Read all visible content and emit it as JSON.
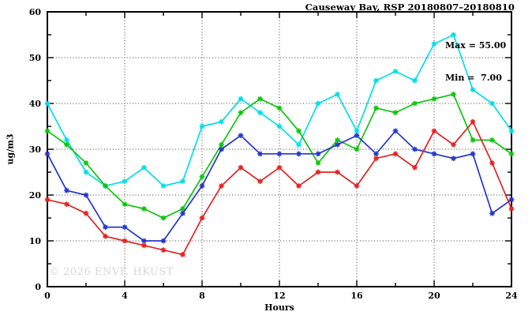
{
  "page": {
    "title": "Causeway Bay, RSP 20180807–20180810"
  },
  "annotations": {
    "max_label": "Max = 55.00",
    "min_label": "Min =  7.00"
  },
  "watermark": "© 2026 ENVF, HKUST",
  "chart_data": {
    "type": "line",
    "title": "Causeway Bay, RSP 20180807–20180810",
    "xlabel": "Hours",
    "ylabel": "ug/m3",
    "xlim": [
      0,
      24
    ],
    "ylim": [
      0,
      60
    ],
    "x_major_ticks": [
      0,
      4,
      8,
      12,
      16,
      20,
      24
    ],
    "x_minor_step": 2,
    "y_major_ticks": [
      0,
      10,
      20,
      30,
      40,
      50,
      60
    ],
    "y_minor_step": 5,
    "grid": "dotted lines at major ticks, mirrored inner ticks on all four sides",
    "legend_position": "none",
    "max": 55.0,
    "min": 7.0,
    "marker": "asterisk",
    "x": [
      0,
      1,
      2,
      3,
      4,
      5,
      6,
      7,
      8,
      9,
      10,
      11,
      12,
      13,
      14,
      15,
      16,
      17,
      18,
      19,
      20,
      21,
      22,
      23,
      24
    ],
    "series": [
      {
        "name": "cyan-line",
        "color": "#00DFE8",
        "values": [
          40,
          32,
          25,
          22,
          23,
          26,
          22,
          23,
          35,
          36,
          41,
          38,
          35,
          31,
          40,
          42,
          34,
          45,
          47,
          45,
          53,
          55,
          43,
          40,
          34
        ]
      },
      {
        "name": "green-line",
        "color": "#0DC60D",
        "values": [
          34,
          31,
          27,
          22,
          18,
          17,
          15,
          17,
          24,
          31,
          38,
          41,
          39,
          34,
          27,
          32,
          30,
          39,
          38,
          40,
          41,
          42,
          32,
          32,
          29
        ]
      },
      {
        "name": "blue-line",
        "color": "#2536CC",
        "values": [
          29,
          21,
          20,
          13,
          13,
          10,
          10,
          16,
          22,
          30,
          33,
          29,
          29,
          29,
          29,
          31,
          33,
          29,
          34,
          30,
          29,
          28,
          29,
          16,
          19
        ]
      },
      {
        "name": "red-line",
        "color": "#E42222",
        "values": [
          19,
          18,
          16,
          11,
          10,
          9,
          8,
          7,
          15,
          22,
          26,
          23,
          26,
          22,
          25,
          25,
          22,
          28,
          29,
          26,
          34,
          31,
          36,
          27,
          17
        ]
      }
    ]
  }
}
